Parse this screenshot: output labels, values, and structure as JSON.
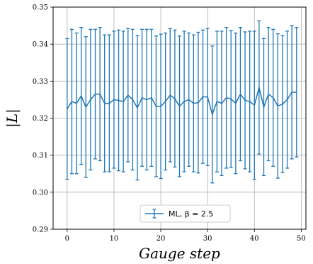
{
  "chart_data": {
    "type": "line",
    "xlabel": "Gauge step",
    "ylabel": "|L|",
    "xlim": [
      -3,
      51
    ],
    "ylim": [
      0.29,
      0.35
    ],
    "xticks": [
      0,
      10,
      20,
      30,
      40,
      50
    ],
    "yticks": [
      0.29,
      0.3,
      0.31,
      0.32,
      0.33,
      0.34,
      0.35
    ],
    "xtick_labels": [
      "0",
      "10",
      "20",
      "30",
      "40",
      "50"
    ],
    "ytick_labels": [
      "0.29",
      "0.30",
      "0.31",
      "0.32",
      "0.33",
      "0.34",
      "0.35"
    ],
    "grid": true,
    "legend_position": "bottom-center",
    "series": [
      {
        "name": "ML, β = 2.5",
        "color": "#1f77b4",
        "x": [
          0,
          1,
          2,
          3,
          4,
          5,
          6,
          7,
          8,
          9,
          10,
          11,
          12,
          13,
          14,
          15,
          16,
          17,
          18,
          19,
          20,
          21,
          22,
          23,
          24,
          25,
          26,
          27,
          28,
          29,
          30,
          31,
          32,
          33,
          34,
          35,
          36,
          37,
          38,
          39,
          40,
          41,
          42,
          43,
          44,
          45,
          46,
          47,
          48,
          49
        ],
        "y": [
          0.3225,
          0.3245,
          0.324,
          0.326,
          0.323,
          0.325,
          0.3265,
          0.3265,
          0.324,
          0.324,
          0.325,
          0.3248,
          0.3245,
          0.3262,
          0.325,
          0.3228,
          0.3255,
          0.325,
          0.3255,
          0.3232,
          0.3232,
          0.3245,
          0.3262,
          0.3253,
          0.3232,
          0.3245,
          0.325,
          0.324,
          0.3242,
          0.3258,
          0.3257,
          0.321,
          0.3245,
          0.324,
          0.3255,
          0.3252,
          0.324,
          0.3265,
          0.3248,
          0.3245,
          0.3235,
          0.3283,
          0.323,
          0.3265,
          0.3255,
          0.3233,
          0.3238,
          0.325,
          0.327,
          0.327
        ],
        "yerr": [
          0.019,
          0.0195,
          0.019,
          0.0185,
          0.019,
          0.019,
          0.0175,
          0.018,
          0.0185,
          0.0185,
          0.0185,
          0.019,
          0.019,
          0.018,
          0.019,
          0.0195,
          0.0185,
          0.019,
          0.0185,
          0.019,
          0.0195,
          0.0185,
          0.018,
          0.0185,
          0.019,
          0.019,
          0.018,
          0.0185,
          0.019,
          0.018,
          0.0185,
          0.0185,
          0.019,
          0.0195,
          0.019,
          0.0185,
          0.019,
          0.018,
          0.0185,
          0.019,
          0.02,
          0.018,
          0.0185,
          0.018,
          0.0185,
          0.0195,
          0.0185,
          0.0185,
          0.018,
          0.0175
        ]
      }
    ]
  }
}
